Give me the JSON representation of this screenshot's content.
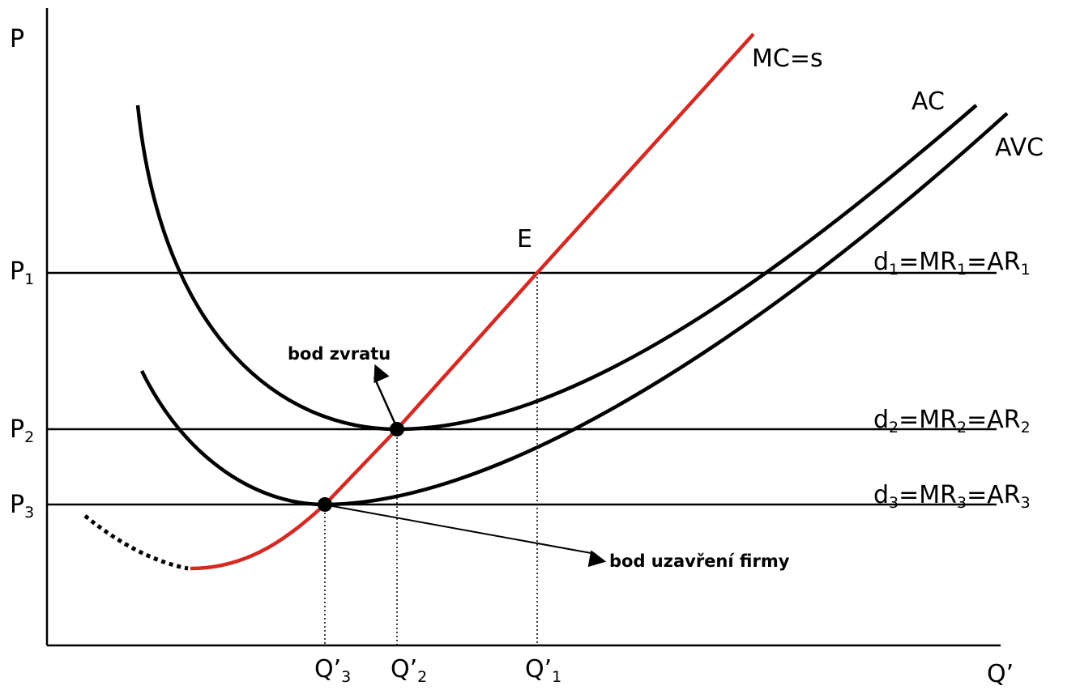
{
  "axes": {
    "y_label": "P",
    "x_label": "Q’"
  },
  "price_levels": [
    {
      "label": [
        "P",
        "1"
      ],
      "line_label": [
        "d",
        "1",
        "=MR",
        "1",
        "=AR",
        "1"
      ]
    },
    {
      "label": [
        "P",
        "2"
      ],
      "line_label": [
        "d",
        "2",
        "=MR",
        "2",
        "=AR",
        "2"
      ]
    },
    {
      "label": [
        "P",
        "3"
      ],
      "line_label": [
        "d",
        "3",
        "=MR",
        "3",
        "=AR",
        "3"
      ]
    }
  ],
  "quantities": [
    [
      "Q’",
      "3"
    ],
    [
      "Q’",
      "2"
    ],
    [
      "Q’",
      "1"
    ]
  ],
  "curves": {
    "mc": "MC=s",
    "ac": "AC",
    "avc": "AVC"
  },
  "point": "E",
  "annotations": {
    "break_even": "bod zvratu",
    "shutdown": "bod uzavření firmy"
  }
}
